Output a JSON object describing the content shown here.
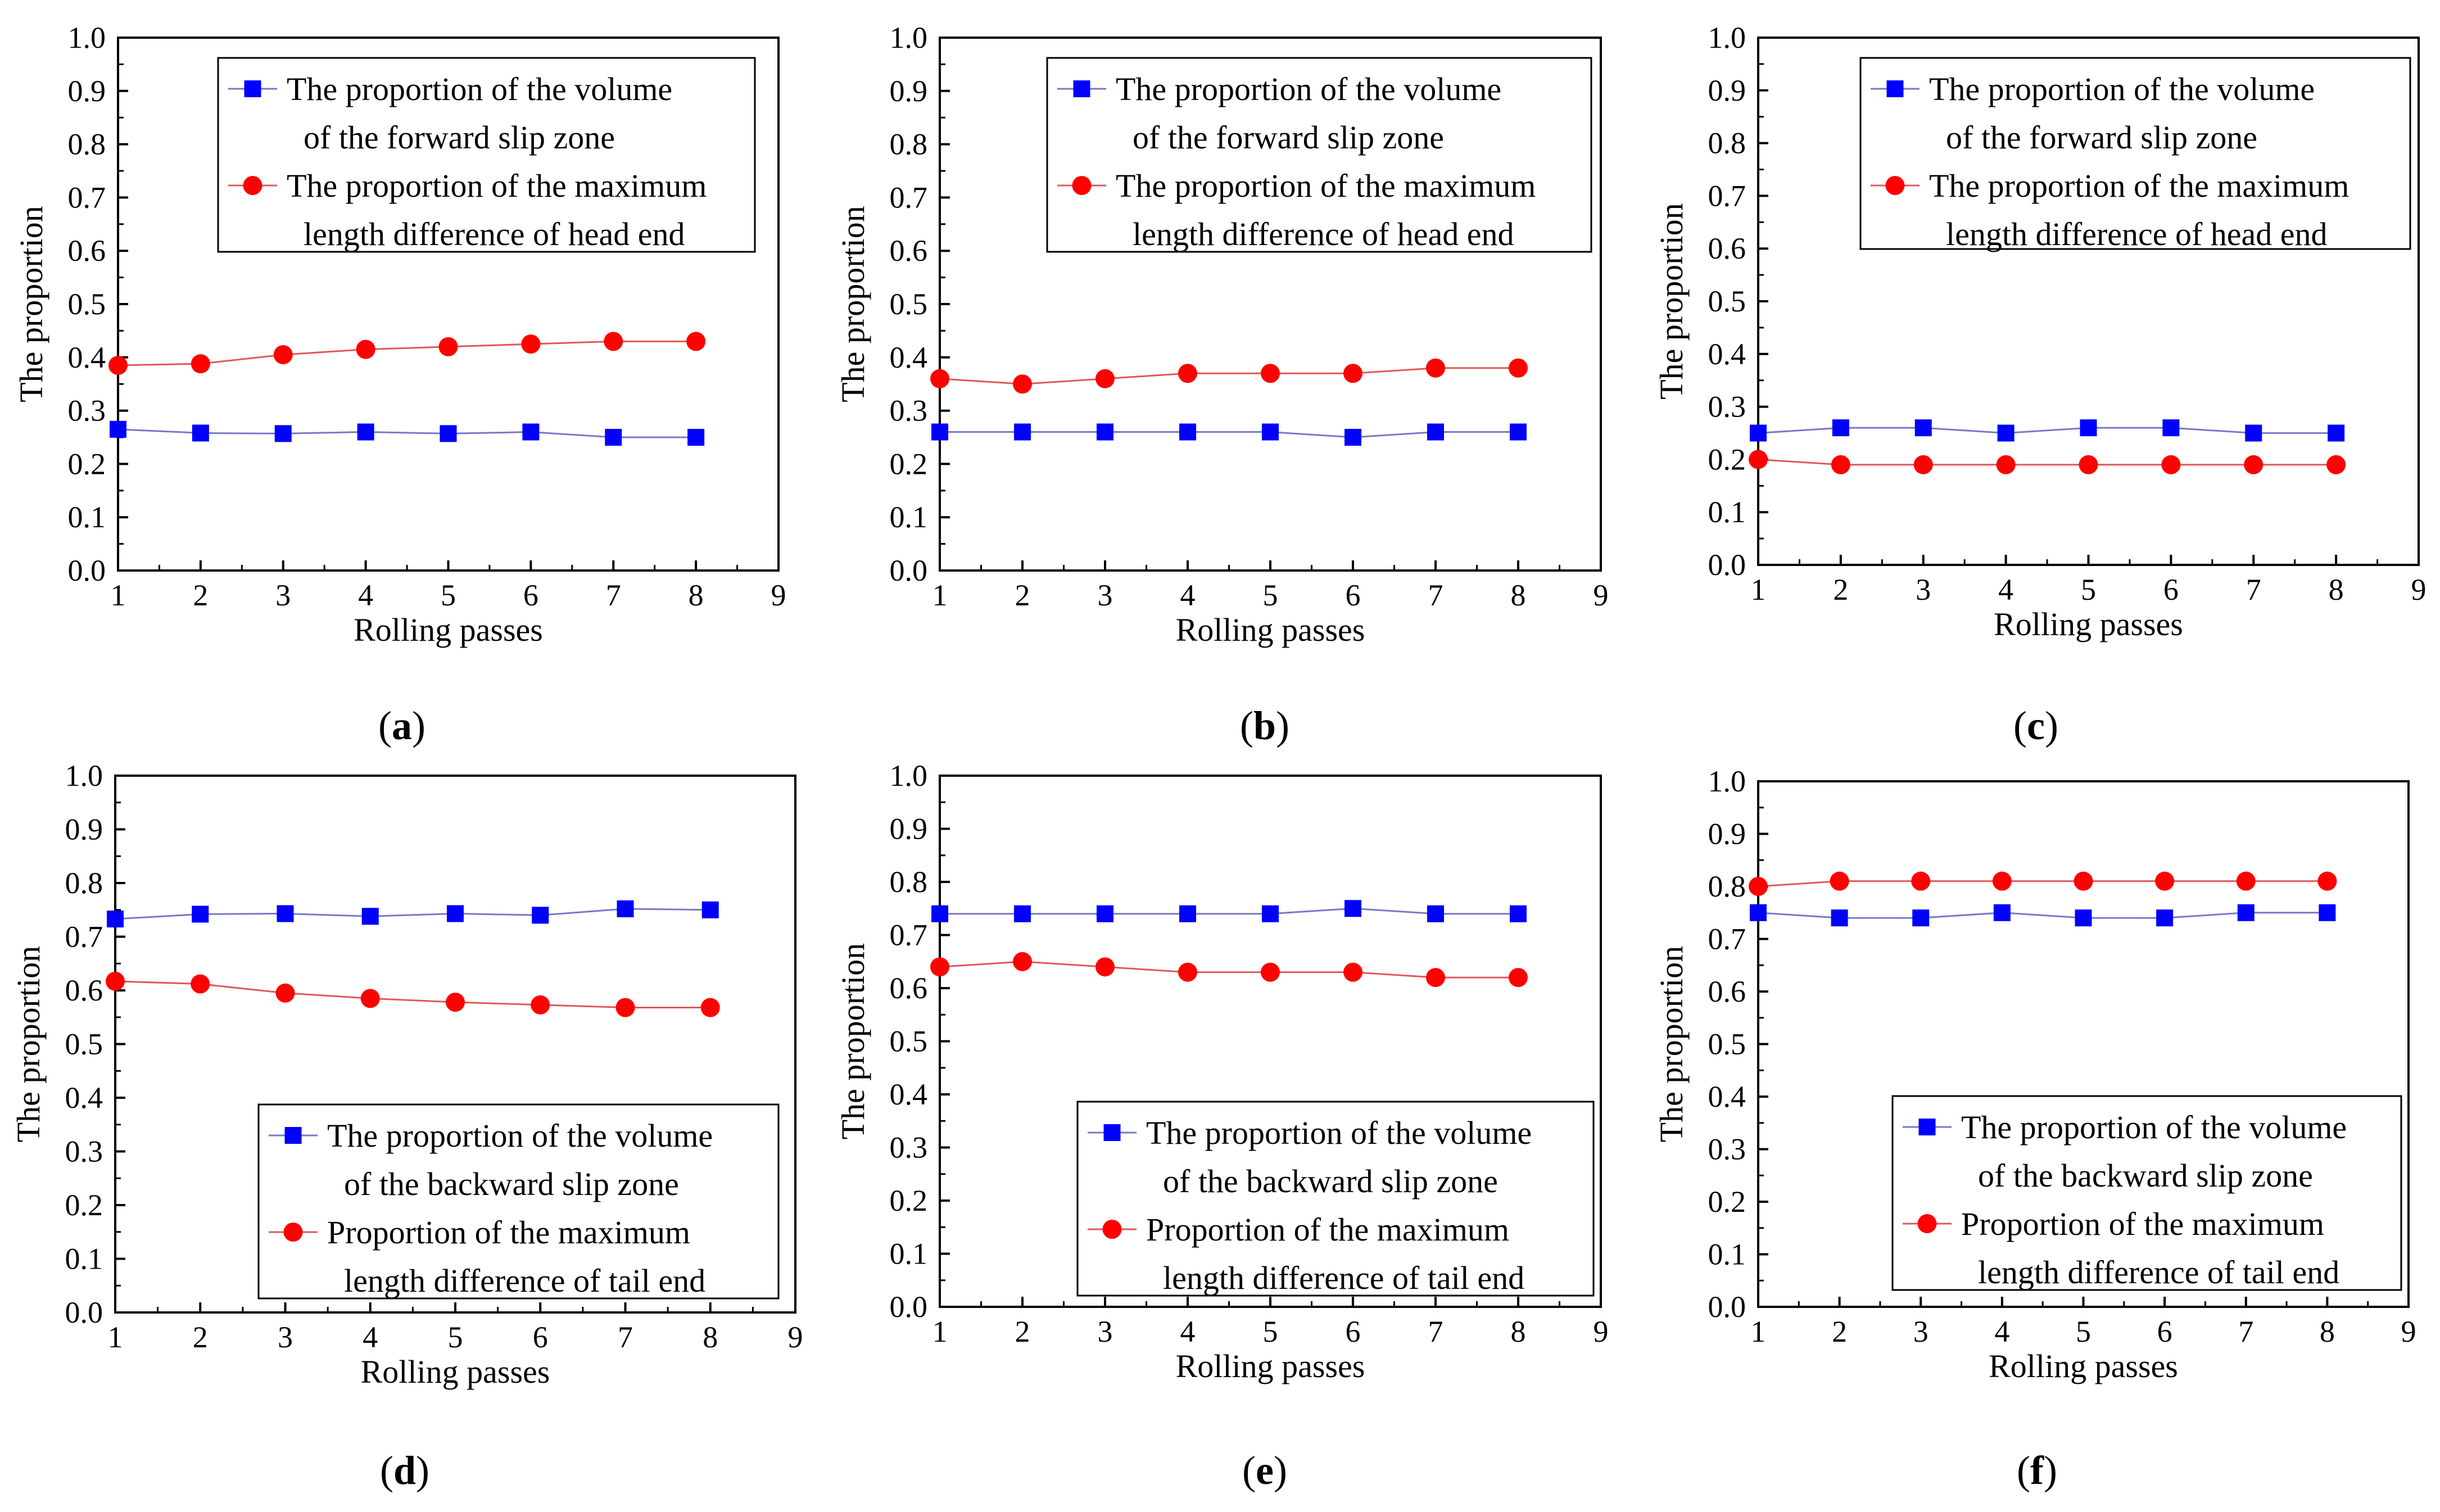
{
  "figure": {
    "series_colors": {
      "blue": "#0000ff",
      "red": "#ff0000",
      "line_blue": "#7878c8",
      "line_red": "#e05858"
    }
  },
  "chart_data": [
    {
      "panel": "a",
      "type": "line",
      "xlabel": "Rolling passes",
      "ylabel": "The proportion",
      "xlim": [
        1,
        9
      ],
      "ylim": [
        0.0,
        1.0
      ],
      "x_ticks": [
        "1",
        "2",
        "3",
        "4",
        "5",
        "6",
        "7",
        "8",
        "9"
      ],
      "y_ticks": [
        "0.0",
        "0.1",
        "0.2",
        "0.3",
        "0.4",
        "0.5",
        "0.6",
        "0.7",
        "0.8",
        "0.9",
        "1.0"
      ],
      "legend_position": "top-right",
      "x": [
        1,
        2,
        3,
        4,
        5,
        6,
        7,
        8
      ],
      "series": [
        {
          "name_lines": [
            "The proportion of the volume",
            "of the forward slip zone"
          ],
          "marker": "square",
          "color": "#0000ff",
          "values": [
            0.265,
            0.258,
            0.257,
            0.26,
            0.257,
            0.26,
            0.25,
            0.25
          ]
        },
        {
          "name_lines": [
            "The proportion of the maximum",
            "length difference of head end"
          ],
          "marker": "circle",
          "color": "#ff0000",
          "values": [
            0.385,
            0.388,
            0.405,
            0.415,
            0.42,
            0.425,
            0.43,
            0.43
          ]
        }
      ]
    },
    {
      "panel": "b",
      "type": "line",
      "xlabel": "Rolling passes",
      "ylabel": "The proportion",
      "xlim": [
        1,
        9
      ],
      "ylim": [
        0.0,
        1.0
      ],
      "x_ticks": [
        "1",
        "2",
        "3",
        "4",
        "5",
        "6",
        "7",
        "8",
        "9"
      ],
      "y_ticks": [
        "0.0",
        "0.1",
        "0.2",
        "0.3",
        "0.4",
        "0.5",
        "0.6",
        "0.7",
        "0.8",
        "0.9",
        "1.0"
      ],
      "legend_position": "top-right",
      "x": [
        1,
        2,
        3,
        4,
        5,
        6,
        7,
        8
      ],
      "series": [
        {
          "name_lines": [
            "The proportion of the volume",
            "of the forward slip zone"
          ],
          "marker": "square",
          "color": "#0000ff",
          "values": [
            0.26,
            0.26,
            0.26,
            0.26,
            0.26,
            0.25,
            0.26,
            0.26
          ]
        },
        {
          "name_lines": [
            "The proportion of the maximum",
            "length difference of head end"
          ],
          "marker": "circle",
          "color": "#ff0000",
          "values": [
            0.36,
            0.35,
            0.36,
            0.37,
            0.37,
            0.37,
            0.38,
            0.38
          ]
        }
      ]
    },
    {
      "panel": "c",
      "type": "line",
      "xlabel": "Rolling passes",
      "ylabel": "The proportion",
      "xlim": [
        1,
        9
      ],
      "ylim": [
        0.0,
        1.0
      ],
      "x_ticks": [
        "1",
        "2",
        "3",
        "4",
        "5",
        "6",
        "7",
        "8",
        "9"
      ],
      "y_ticks": [
        "0.0",
        "0.1",
        "0.2",
        "0.3",
        "0.4",
        "0.5",
        "0.6",
        "0.7",
        "0.8",
        "0.9",
        "1.0"
      ],
      "legend_position": "top-right",
      "x": [
        1,
        2,
        3,
        4,
        5,
        6,
        7,
        8
      ],
      "series": [
        {
          "name_lines": [
            "The proportion of the volume",
            "of the forward slip zone"
          ],
          "marker": "square",
          "color": "#0000ff",
          "values": [
            0.25,
            0.26,
            0.26,
            0.25,
            0.26,
            0.26,
            0.25,
            0.25
          ]
        },
        {
          "name_lines": [
            "The proportion of the maximum",
            "length difference of head end"
          ],
          "marker": "circle",
          "color": "#ff0000",
          "values": [
            0.2,
            0.19,
            0.19,
            0.19,
            0.19,
            0.19,
            0.19,
            0.19
          ]
        }
      ]
    },
    {
      "panel": "d",
      "type": "line",
      "xlabel": "Rolling passes",
      "ylabel": "The proportion",
      "xlim": [
        1,
        9
      ],
      "ylim": [
        0.0,
        1.0
      ],
      "x_ticks": [
        "1",
        "2",
        "3",
        "4",
        "5",
        "6",
        "7",
        "8",
        "9"
      ],
      "y_ticks": [
        "0.0",
        "0.1",
        "0.2",
        "0.3",
        "0.4",
        "0.5",
        "0.6",
        "0.7",
        "0.8",
        "0.9",
        "1.0"
      ],
      "legend_position": "bottom-right",
      "x": [
        1,
        2,
        3,
        4,
        5,
        6,
        7,
        8
      ],
      "series": [
        {
          "name_lines": [
            "The proportion of the volume",
            "of the backward slip zone"
          ],
          "marker": "square",
          "color": "#0000ff",
          "values": [
            0.733,
            0.742,
            0.743,
            0.738,
            0.743,
            0.74,
            0.752,
            0.75
          ]
        },
        {
          "name_lines": [
            "Proportion of the maximum",
            "length difference of tail end"
          ],
          "marker": "circle",
          "color": "#ff0000",
          "values": [
            0.617,
            0.612,
            0.595,
            0.585,
            0.578,
            0.573,
            0.568,
            0.568
          ]
        }
      ]
    },
    {
      "panel": "e",
      "type": "line",
      "xlabel": "Rolling passes",
      "ylabel": "The proportion",
      "xlim": [
        1,
        9
      ],
      "ylim": [
        0.0,
        1.0
      ],
      "x_ticks": [
        "1",
        "2",
        "3",
        "4",
        "5",
        "6",
        "7",
        "8",
        "9"
      ],
      "y_ticks": [
        "0.0",
        "0.1",
        "0.2",
        "0.3",
        "0.4",
        "0.5",
        "0.6",
        "0.7",
        "0.8",
        "0.9",
        "1.0"
      ],
      "legend_position": "bottom-right",
      "x": [
        1,
        2,
        3,
        4,
        5,
        6,
        7,
        8
      ],
      "series": [
        {
          "name_lines": [
            "The proportion of the volume",
            "of the backward slip zone"
          ],
          "marker": "square",
          "color": "#0000ff",
          "values": [
            0.74,
            0.74,
            0.74,
            0.74,
            0.74,
            0.75,
            0.74,
            0.74
          ]
        },
        {
          "name_lines": [
            "Proportion of the maximum",
            "length difference of tail end"
          ],
          "marker": "circle",
          "color": "#ff0000",
          "values": [
            0.64,
            0.65,
            0.64,
            0.63,
            0.63,
            0.63,
            0.62,
            0.62
          ]
        }
      ]
    },
    {
      "panel": "f",
      "type": "line",
      "xlabel": "Rolling passes",
      "ylabel": "The proportion",
      "xlim": [
        1,
        9
      ],
      "ylim": [
        0.0,
        1.0
      ],
      "x_ticks": [
        "1",
        "2",
        "3",
        "4",
        "5",
        "6",
        "7",
        "8",
        "9"
      ],
      "y_ticks": [
        "0.0",
        "0.1",
        "0.2",
        "0.3",
        "0.4",
        "0.5",
        "0.6",
        "0.7",
        "0.8",
        "0.9",
        "1.0"
      ],
      "legend_position": "bottom-right",
      "x": [
        1,
        2,
        3,
        4,
        5,
        6,
        7,
        8
      ],
      "series": [
        {
          "name_lines": [
            "The proportion of the volume",
            "of the backward slip zone"
          ],
          "marker": "square",
          "color": "#0000ff",
          "values": [
            0.75,
            0.74,
            0.74,
            0.75,
            0.74,
            0.74,
            0.75,
            0.75
          ]
        },
        {
          "name_lines": [
            "Proportion of the maximum",
            "length difference of tail end"
          ],
          "marker": "circle",
          "color": "#ff0000",
          "values": [
            0.8,
            0.81,
            0.81,
            0.81,
            0.81,
            0.81,
            0.81,
            0.81
          ]
        }
      ]
    }
  ]
}
